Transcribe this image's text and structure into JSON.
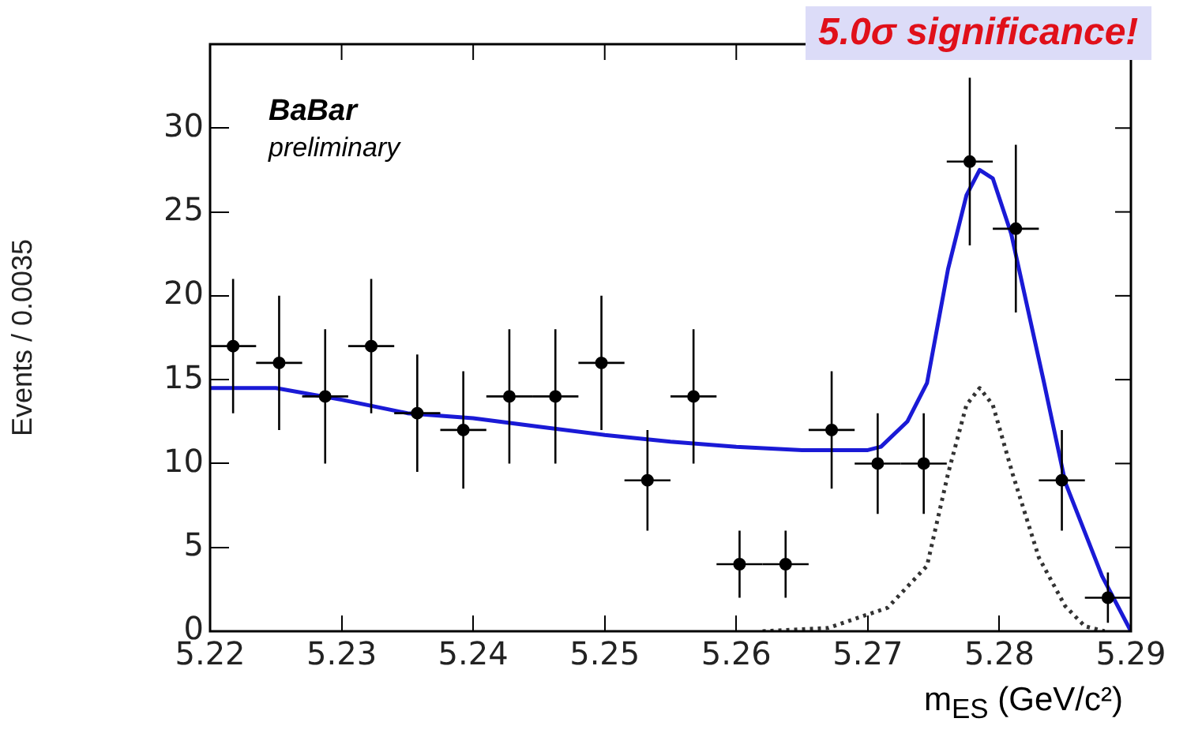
{
  "chart_data": {
    "type": "scatter",
    "xlabel": "m$_{ES}$ (GeV/c²)",
    "ylabel": "Events / 0.0035",
    "annotations": [
      "BaBar",
      "preliminary",
      "5.0σ significance!"
    ],
    "xlim": [
      5.22,
      5.29
    ],
    "xticks": [
      5.22,
      5.23,
      5.24,
      5.25,
      5.26,
      5.27,
      5.28,
      5.29
    ],
    "ylim": [
      0,
      35
    ],
    "yticks": [
      0,
      5,
      10,
      15,
      20,
      25,
      30
    ],
    "grid": false,
    "legend": false,
    "series": [
      {
        "color": "#000000",
        "marker": "circle",
        "x": [
          5.22175,
          5.22525,
          5.22875,
          5.23225,
          5.23575,
          5.23925,
          5.24275,
          5.24625,
          5.24975,
          5.25325,
          5.25675,
          5.26025,
          5.26375,
          5.26725,
          5.27075,
          5.27425,
          5.27775,
          5.28125,
          5.28475,
          5.28825
        ],
        "values": [
          17,
          16,
          14,
          17,
          13,
          12,
          14,
          14,
          16,
          9,
          14,
          4,
          4,
          12,
          10,
          10,
          28,
          24,
          9,
          2
        ],
        "errors": [
          4,
          4,
          4,
          4,
          3.5,
          3.5,
          4,
          4,
          4,
          3,
          4,
          2,
          2,
          3.5,
          3,
          3,
          5,
          5,
          3,
          1.5
        ],
        "xerrors": [
          0.00175,
          0.00175,
          0.00175,
          0.00175,
          0.00175,
          0.00175,
          0.00175,
          0.00175,
          0.00175,
          0.00175,
          0.00175,
          0.00175,
          0.00175,
          0.00175,
          0.00175,
          0.00175,
          0.00175,
          0.00175,
          0.00175,
          0.00175
        ]
      },
      {
        "type": "line",
        "color": "#1a1ad6",
        "line_style": "solid",
        "marker": "none",
        "x": [
          5.22,
          5.225,
          5.23,
          5.235,
          5.24,
          5.245,
          5.25,
          5.255,
          5.26,
          5.265,
          5.27,
          5.271,
          5.273,
          5.2745,
          5.2761,
          5.2775,
          5.2785,
          5.2795,
          5.2809,
          5.2834,
          5.285,
          5.2878,
          5.29
        ],
        "values": [
          14.5,
          14.5,
          13.8,
          13.0,
          12.7,
          12.2,
          11.7,
          11.3,
          11.0,
          10.8,
          10.8,
          11.0,
          12.5,
          14.8,
          21.6,
          26,
          27.5,
          27,
          23.7,
          14.8,
          8.9,
          3.3,
          0
        ]
      },
      {
        "type": "line",
        "color": "#333333",
        "line_style": "dotted",
        "marker": "none",
        "x": [
          5.262,
          5.267,
          5.2715,
          5.2745,
          5.2761,
          5.2775,
          5.2785,
          5.2795,
          5.281,
          5.283,
          5.285,
          5.2865,
          5.288
        ],
        "values": [
          0,
          0.2,
          1.4,
          3.9,
          9.4,
          13.5,
          14.5,
          13.5,
          9.4,
          4.4,
          1.5,
          0.3,
          0
        ]
      }
    ]
  }
}
